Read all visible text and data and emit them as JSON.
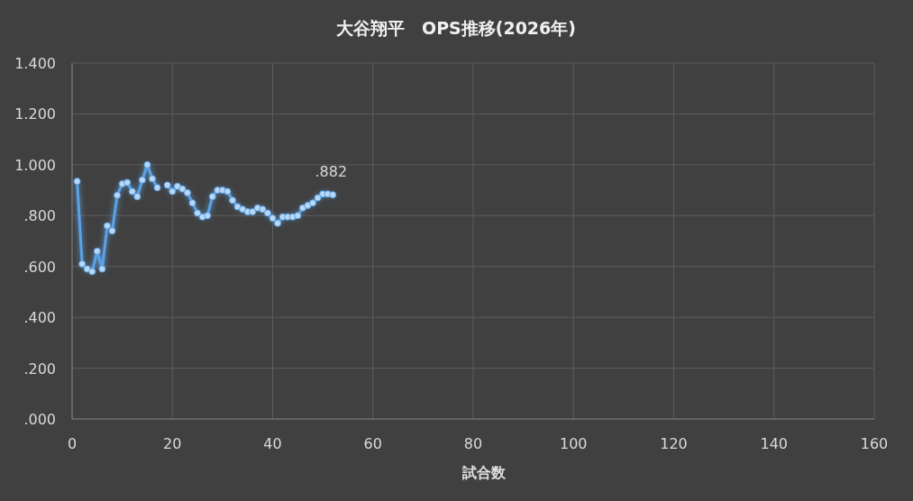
{
  "chart_data": {
    "type": "line",
    "title": "大谷翔平　OPS推移(2026年)",
    "xlabel": "試合数",
    "series": [
      {
        "color": "#5ba3e6",
        "x": [
          1,
          2,
          3,
          4,
          5,
          6,
          7,
          8,
          9,
          10,
          11,
          12,
          13,
          14,
          15,
          16,
          17
        ],
        "values": [
          0.935,
          0.61,
          0.59,
          0.58,
          0.66,
          0.59,
          0.76,
          0.74,
          0.88,
          0.925,
          0.93,
          0.895,
          0.875,
          0.94,
          1.0,
          0.945,
          0.91
        ]
      },
      {
        "color": "#5ba3e6",
        "x": [
          19,
          20,
          21,
          22,
          23,
          24,
          25,
          26,
          27,
          28,
          29,
          30,
          31,
          32,
          33,
          34,
          35,
          36,
          37,
          38,
          39,
          40,
          41,
          42,
          43,
          44,
          45,
          46,
          47,
          48,
          49,
          50,
          51,
          52
        ],
        "values": [
          0.92,
          0.895,
          0.915,
          0.905,
          0.89,
          0.85,
          0.81,
          0.795,
          0.8,
          0.875,
          0.9,
          0.9,
          0.895,
          0.86,
          0.835,
          0.825,
          0.815,
          0.815,
          0.83,
          0.825,
          0.81,
          0.79,
          0.77,
          0.795,
          0.795,
          0.795,
          0.8,
          0.83,
          0.84,
          0.85,
          0.87,
          0.885,
          0.885,
          0.882
        ]
      }
    ],
    "annotations": [
      {
        "text": ".882",
        "x": 52,
        "y": 0.882
      }
    ],
    "xlim": [
      0,
      160
    ],
    "xticks": [
      0,
      20,
      40,
      60,
      80,
      100,
      120,
      140,
      160
    ],
    "ylim": [
      0,
      1.4
    ],
    "yticks": [
      {
        "value": 0,
        "label": ".000"
      },
      {
        "value": 0.2,
        "label": ".200"
      },
      {
        "value": 0.4,
        "label": ".400"
      },
      {
        "value": 0.6,
        "label": ".600"
      },
      {
        "value": 0.8,
        "label": ".800"
      },
      {
        "value": 1.0,
        "label": "1.000"
      },
      {
        "value": 1.2,
        "label": "1.200"
      },
      {
        "value": 1.4,
        "label": "1.400"
      }
    ],
    "grid": true,
    "marker": "circle"
  }
}
